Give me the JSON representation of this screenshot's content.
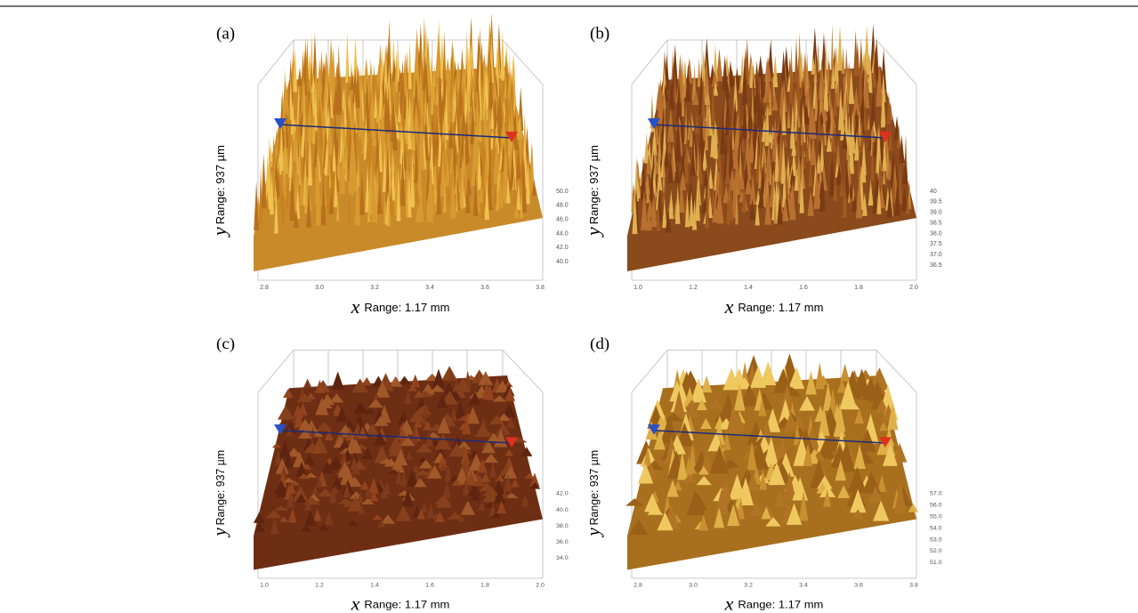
{
  "panels": [
    {
      "label": "(a)",
      "y_var": "y",
      "y_text": "Range:  937 µm",
      "x_var": "x",
      "x_text": "Range:  1.17 mm",
      "x_ticks": [
        "2.8",
        "3.0",
        "3.2",
        "3.4",
        "3.6",
        "3.8"
      ],
      "z_ticks": [
        "50.0",
        "48.0",
        "46.0",
        "44.0",
        "42.0",
        "40.0"
      ]
    },
    {
      "label": "(b)",
      "y_var": "y",
      "y_text": "Range:  937 µm",
      "x_var": "x",
      "x_text": "Range:  1.17 mm",
      "x_ticks": [
        "1.0",
        "1.2",
        "1.4",
        "1.6",
        "1.8",
        "2.0"
      ],
      "z_ticks": [
        "40",
        "39.5",
        "39.0",
        "38.5",
        "38.0",
        "37.5",
        "37.0",
        "36.5"
      ]
    },
    {
      "label": "(c)",
      "y_var": "y",
      "y_text": "Range:  937 µm",
      "x_var": "x",
      "x_text": "Range:  1.17 mm",
      "x_ticks": [
        "1.0",
        "1.2",
        "1.4",
        "1.6",
        "1.8",
        "2.0"
      ],
      "z_ticks": [
        "42.0",
        "40.0",
        "38.0",
        "36.0",
        "34.0"
      ]
    },
    {
      "label": "(d)",
      "y_var": "y",
      "y_text": "Range:  937 µm",
      "x_var": "x",
      "x_text": "Range:  1.17 mm",
      "x_ticks": [
        "2.8",
        "3.0",
        "3.2",
        "3.4",
        "3.6",
        "3.8"
      ],
      "z_ticks": [
        "57.0",
        "56.0",
        "55.0",
        "54.0",
        "53.0",
        "52.0",
        "51.0"
      ]
    }
  ]
}
